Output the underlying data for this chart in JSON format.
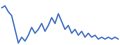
{
  "values": [
    6,
    7,
    4,
    2,
    -5,
    -12,
    -9,
    -11,
    -8,
    -4,
    -7,
    -5,
    -2,
    -6,
    -3,
    1,
    -2,
    3,
    -1,
    -5,
    -3,
    -7,
    -5,
    -8,
    -6,
    -9,
    -7,
    -9,
    -8,
    -10,
    -9,
    -10,
    -9,
    -10,
    -9,
    -10
  ],
  "line_color": "#4472c4",
  "background_color": "#ffffff",
  "linewidth": 1.0
}
